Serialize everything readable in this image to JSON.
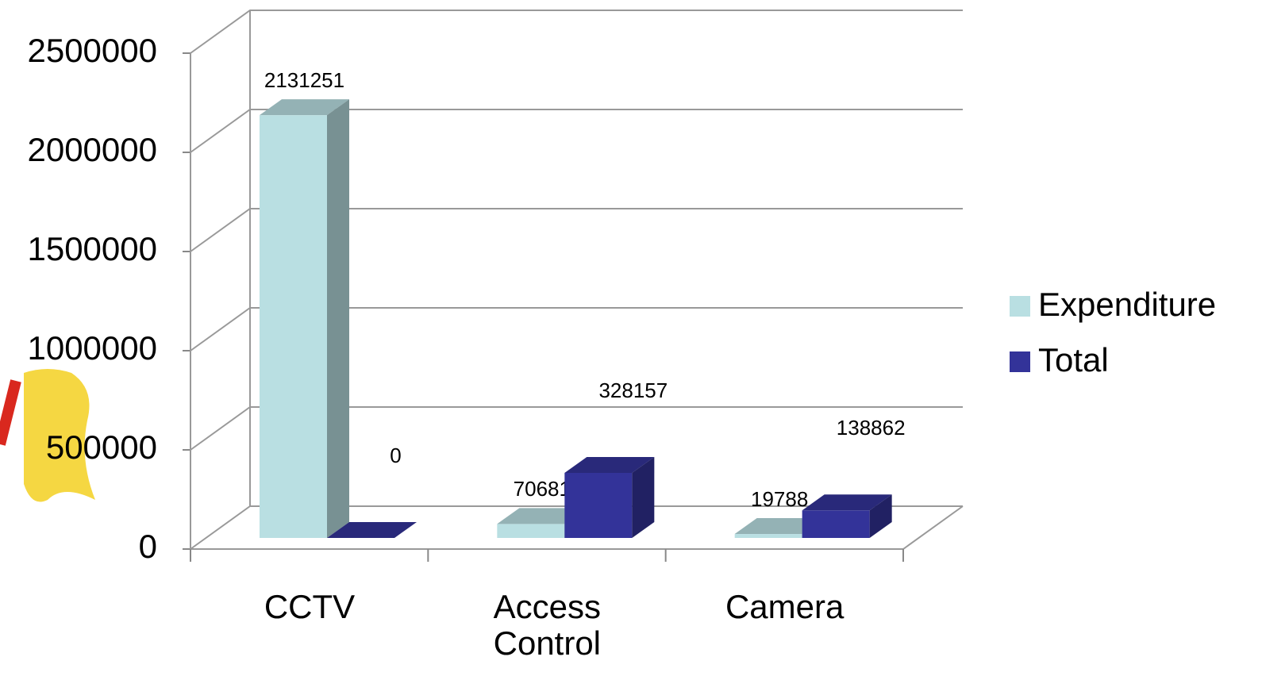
{
  "chart_data": {
    "type": "bar3d",
    "categories": [
      "CCTV",
      "Access Control",
      "Camera"
    ],
    "series": [
      {
        "name": "Expenditure",
        "color": "#b9dfe2",
        "values": [
          2131251,
          70681,
          19788
        ]
      },
      {
        "name": "Total",
        "color": "#333399",
        "values": [
          0,
          328157,
          138862
        ]
      }
    ],
    "ylim": [
      0,
      2500000
    ],
    "yticks": [
      0,
      500000,
      1000000,
      1500000,
      2000000,
      2500000
    ],
    "grid": true,
    "legend": "right"
  }
}
